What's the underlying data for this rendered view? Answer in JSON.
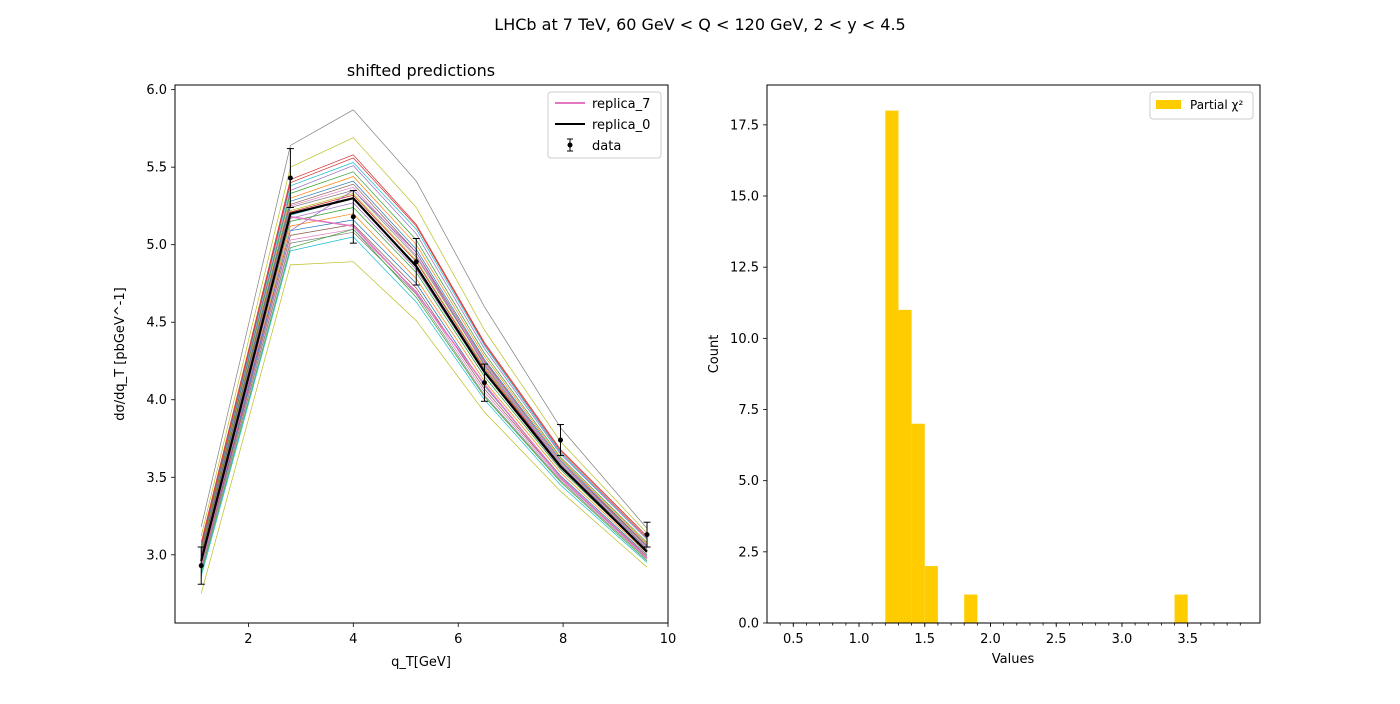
{
  "figure": {
    "suptitle": "LHCb at 7 TeV, 60 GeV < Q < 120 GeV, 2 < y < 4.5"
  },
  "chart_data": [
    {
      "type": "line",
      "title": "shifted predictions",
      "xlabel": "q_T[GeV]",
      "ylabel": "dσ/dq_T [pbGeV^-1]",
      "xlim": [
        0.6,
        10.0
      ],
      "ylim": [
        2.56,
        6.03
      ],
      "xticks": [
        2,
        4,
        6,
        8,
        10
      ],
      "yticks": [
        3.0,
        3.5,
        4.0,
        4.5,
        5.0,
        5.5,
        6.0
      ],
      "legend_position": "upper right",
      "x": [
        1.1,
        2.8,
        4.0,
        5.2,
        6.5,
        7.95,
        9.6
      ],
      "data": {
        "name": "data",
        "y": [
          2.93,
          5.43,
          5.18,
          4.89,
          4.11,
          3.74,
          3.13
        ],
        "yerr": [
          0.12,
          0.19,
          0.17,
          0.15,
          0.12,
          0.1,
          0.08
        ]
      },
      "central": {
        "name": "replica_0",
        "color": "#000000",
        "y": [
          2.96,
          5.2,
          5.3,
          4.86,
          4.18,
          3.57,
          3.02
        ]
      },
      "highlight": {
        "name": "replica_7",
        "color": "#e377c2",
        "y": [
          2.93,
          5.18,
          5.12,
          4.69,
          4.1,
          3.5,
          2.98
        ]
      },
      "replicas": [
        {
          "color": "#7f7f7f",
          "y": [
            3.18,
            5.64,
            5.87,
            5.41,
            4.6,
            3.82,
            3.17
          ]
        },
        {
          "color": "#bcbd22",
          "y": [
            3.12,
            5.5,
            5.69,
            5.24,
            4.45,
            3.73,
            3.14
          ]
        },
        {
          "color": "#d62728",
          "y": [
            3.08,
            5.42,
            5.58,
            5.13,
            4.37,
            3.68,
            3.12
          ]
        },
        {
          "color": "#17becf",
          "y": [
            3.05,
            5.38,
            5.53,
            5.1,
            4.35,
            3.66,
            3.1
          ]
        },
        {
          "color": "#9467bd",
          "y": [
            3.04,
            5.35,
            5.51,
            5.07,
            4.33,
            3.65,
            3.1
          ]
        },
        {
          "color": "#2ca02c",
          "y": [
            3.03,
            5.33,
            5.47,
            5.03,
            4.3,
            3.63,
            3.08
          ]
        },
        {
          "color": "#ff7f0e",
          "y": [
            3.02,
            5.3,
            5.44,
            5.0,
            4.28,
            3.62,
            3.07
          ]
        },
        {
          "color": "#1f77b4",
          "y": [
            3.01,
            5.28,
            5.41,
            4.97,
            4.26,
            3.61,
            3.06
          ]
        },
        {
          "color": "#8c564b",
          "y": [
            3.0,
            5.26,
            5.39,
            4.95,
            4.25,
            3.6,
            3.06
          ]
        },
        {
          "color": "#e377c2",
          "y": [
            2.99,
            5.25,
            5.37,
            4.93,
            4.24,
            3.6,
            3.05
          ]
        },
        {
          "color": "#7f7f7f",
          "y": [
            2.99,
            5.24,
            5.35,
            4.92,
            4.23,
            3.59,
            3.05
          ]
        },
        {
          "color": "#bcbd22",
          "y": [
            2.98,
            5.22,
            5.33,
            4.9,
            4.21,
            3.58,
            3.04
          ]
        },
        {
          "color": "#d62728",
          "y": [
            2.98,
            5.21,
            5.32,
            4.89,
            4.2,
            3.58,
            3.04
          ]
        },
        {
          "color": "#17becf",
          "y": [
            2.97,
            5.19,
            5.3,
            4.87,
            4.19,
            3.57,
            3.03
          ]
        },
        {
          "color": "#9467bd",
          "y": [
            2.96,
            5.17,
            5.27,
            4.84,
            4.17,
            3.56,
            3.03
          ]
        },
        {
          "color": "#2ca02c",
          "y": [
            2.95,
            5.15,
            5.24,
            4.82,
            4.15,
            3.55,
            3.02
          ]
        },
        {
          "color": "#ff7f0e",
          "y": [
            2.94,
            5.12,
            5.2,
            4.78,
            4.12,
            3.53,
            3.01
          ]
        },
        {
          "color": "#1f77b4",
          "y": [
            2.93,
            5.09,
            5.16,
            4.75,
            4.09,
            3.51,
            3.0
          ]
        },
        {
          "color": "#8c564b",
          "y": [
            2.92,
            5.06,
            5.13,
            4.72,
            4.07,
            3.5,
            2.99
          ]
        },
        {
          "color": "#e377c2",
          "y": [
            2.91,
            5.03,
            5.1,
            4.7,
            4.05,
            3.49,
            2.98
          ]
        },
        {
          "color": "#7f7f7f",
          "y": [
            2.9,
            5.01,
            5.08,
            4.68,
            4.03,
            3.48,
            2.97
          ]
        },
        {
          "color": "#2ca02c",
          "y": [
            2.88,
            4.98,
            5.1,
            4.66,
            4.02,
            3.47,
            2.96
          ]
        },
        {
          "color": "#17becf",
          "y": [
            2.86,
            4.96,
            5.05,
            4.63,
            4.0,
            3.45,
            2.95
          ]
        },
        {
          "color": "#bcbd22",
          "y": [
            2.75,
            4.87,
            4.89,
            4.51,
            3.92,
            3.41,
            2.92
          ]
        },
        {
          "color": "#d62728",
          "y": [
            3.06,
            5.4,
            5.56,
            5.12,
            4.36,
            3.67,
            3.11
          ]
        },
        {
          "color": "#9467bd",
          "y": [
            2.97,
            5.09,
            5.35,
            4.95,
            4.22,
            3.58,
            3.04
          ]
        }
      ]
    },
    {
      "type": "bar",
      "title": "",
      "xlabel": "Values",
      "ylabel": "Count",
      "xlim": [
        0.3,
        4.05
      ],
      "ylim": [
        0,
        18.9
      ],
      "xticks": [
        0.5,
        1.0,
        1.5,
        2.0,
        2.5,
        3.0,
        3.5
      ],
      "yticks": [
        0.0,
        2.5,
        5.0,
        7.5,
        10.0,
        12.5,
        15.0,
        17.5
      ],
      "legend_position": "upper right",
      "series": [
        {
          "name": "Partial χ²",
          "color": "#ffcc00",
          "bins": [
            {
              "start": 1.2,
              "end": 1.3,
              "count": 18
            },
            {
              "start": 1.3,
              "end": 1.4,
              "count": 11
            },
            {
              "start": 1.4,
              "end": 1.5,
              "count": 7
            },
            {
              "start": 1.5,
              "end": 1.6,
              "count": 2
            },
            {
              "start": 1.8,
              "end": 1.9,
              "count": 1
            },
            {
              "start": 3.4,
              "end": 3.5,
              "count": 1
            }
          ]
        }
      ]
    }
  ]
}
